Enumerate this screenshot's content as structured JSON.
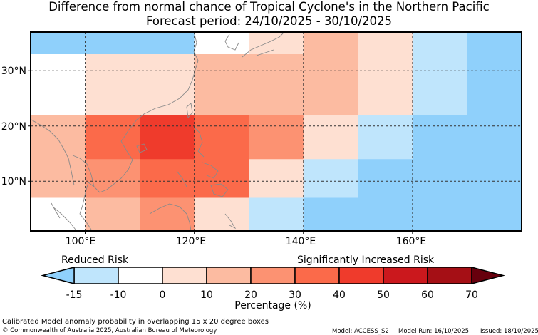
{
  "title_line1": "Difference from normal chance of Tropical Cyclone's in the Northern Pacific",
  "title_line2": "Forecast period: 24/10/2025 - 30/10/2025",
  "lat_labels": [
    "30°N",
    "20°N",
    "10°N"
  ],
  "lon_labels": [
    "100°E",
    "120°E",
    "140°E",
    "160°E"
  ],
  "legend": {
    "reduced_label": "Reduced Risk",
    "increased_label": "Significantly Increased Risk",
    "title": "Percentage (%)",
    "ticks": [
      "-15",
      "-10",
      "0",
      "10",
      "20",
      "30",
      "40",
      "50",
      "60",
      "70"
    ],
    "bins": [
      {
        "range": "< -15",
        "color": "#8fd0fb"
      },
      {
        "range": "-15 to -10",
        "color": "#bfe5fc"
      },
      {
        "range": "-10 to 0",
        "color": "#ffffff"
      },
      {
        "range": "0 to 10",
        "color": "#fee0d2"
      },
      {
        "range": "10 to 20",
        "color": "#fcbba1"
      },
      {
        "range": "20 to 30",
        "color": "#fc9272"
      },
      {
        "range": "30 to 40",
        "color": "#fb6a4a"
      },
      {
        "range": "40 to 50",
        "color": "#ef3b2c"
      },
      {
        "range": "50 to 60",
        "color": "#cb181d"
      },
      {
        "range": "60 to 70",
        "color": "#a50f15"
      },
      {
        "range": "> 70",
        "color": "#67000d"
      }
    ]
  },
  "chart_data": {
    "type": "heatmap",
    "title": "Difference from normal chance of Tropical Cyclone's in the Northern Pacific",
    "subtitle": "Forecast period: 24/10/2025 - 30/10/2025",
    "units": "Percentage (%) difference from normal",
    "lon_range": [
      90,
      180
    ],
    "lat_range": [
      1,
      37
    ],
    "lon_edges": [
      90,
      100,
      110,
      120,
      130,
      140,
      150,
      160,
      170,
      180
    ],
    "cells": [
      {
        "lat": [
          33,
          37
        ],
        "values": [
          -20,
          -20,
          -20,
          -5,
          5,
          15,
          5,
          -12,
          -20
        ]
      },
      {
        "lat": [
          30,
          33
        ],
        "values": [
          -5,
          5,
          5,
          15,
          15,
          15,
          5,
          -12,
          -20
        ]
      },
      {
        "lat": [
          22,
          30
        ],
        "values": [
          -5,
          5,
          5,
          15,
          15,
          15,
          5,
          -12,
          -20
        ]
      },
      {
        "lat": [
          20,
          22
        ],
        "values": [
          15,
          35,
          45,
          35,
          25,
          5,
          -12,
          -20,
          -20
        ]
      },
      {
        "lat": [
          14,
          20
        ],
        "values": [
          15,
          35,
          45,
          35,
          25,
          5,
          -12,
          -20,
          -20
        ]
      },
      {
        "lat": [
          10,
          14
        ],
        "values": [
          15,
          25,
          35,
          35,
          5,
          -12,
          -20,
          -20,
          -20
        ]
      },
      {
        "lat": [
          7,
          10
        ],
        "values": [
          15,
          25,
          35,
          35,
          5,
          -12,
          -20,
          -20,
          -20
        ]
      },
      {
        "lat": [
          1,
          7
        ],
        "values": [
          -5,
          15,
          25,
          5,
          -12,
          -20,
          -20,
          -20,
          -20
        ]
      }
    ],
    "grid_lats": [
      30,
      20,
      10
    ],
    "grid_lons": [
      100,
      120,
      140,
      160
    ]
  },
  "footer": {
    "caption": "Calibrated Model anomaly probability in overlapping 15 x 20 degree boxes",
    "copyright": "© Commonwealth of Australia 2025, Australian Bureau of Meteorology",
    "model": "Model: ACCESS_S2",
    "model_run": "Model Run: 16/10/2025",
    "issued": "Issued: 18/10/2025"
  }
}
